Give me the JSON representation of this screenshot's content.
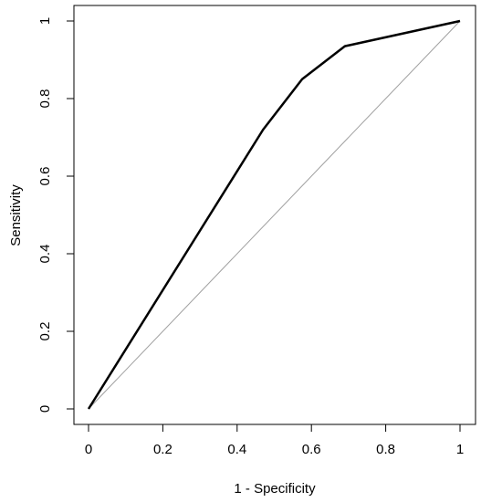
{
  "chart_data": {
    "type": "line",
    "title": "",
    "xlabel": "1 - Specificity",
    "ylabel": "Sensitivity",
    "xlim": [
      0,
      1
    ],
    "ylim": [
      0,
      1
    ],
    "grid": false,
    "legend": "none",
    "x_ticks": [
      0,
      0.2,
      0.4,
      0.6,
      0.8,
      1
    ],
    "x_tick_labels": [
      "0",
      "0.2",
      "0.4",
      "0.6",
      "0.8",
      "1"
    ],
    "y_ticks": [
      0,
      0.2,
      0.4,
      0.6,
      0.8,
      1
    ],
    "y_tick_labels": [
      "0",
      "0.2",
      "0.4",
      "0.6",
      "0.8",
      "1"
    ],
    "series": [
      {
        "x": [
          0,
          0.47,
          0.575,
          0.69,
          1
        ],
        "y": [
          0,
          0.72,
          0.85,
          0.935,
          1
        ],
        "color": "#000000"
      },
      {
        "x": [
          0,
          1
        ],
        "y": [
          0,
          1
        ],
        "color": "#a0a0a0"
      }
    ]
  }
}
